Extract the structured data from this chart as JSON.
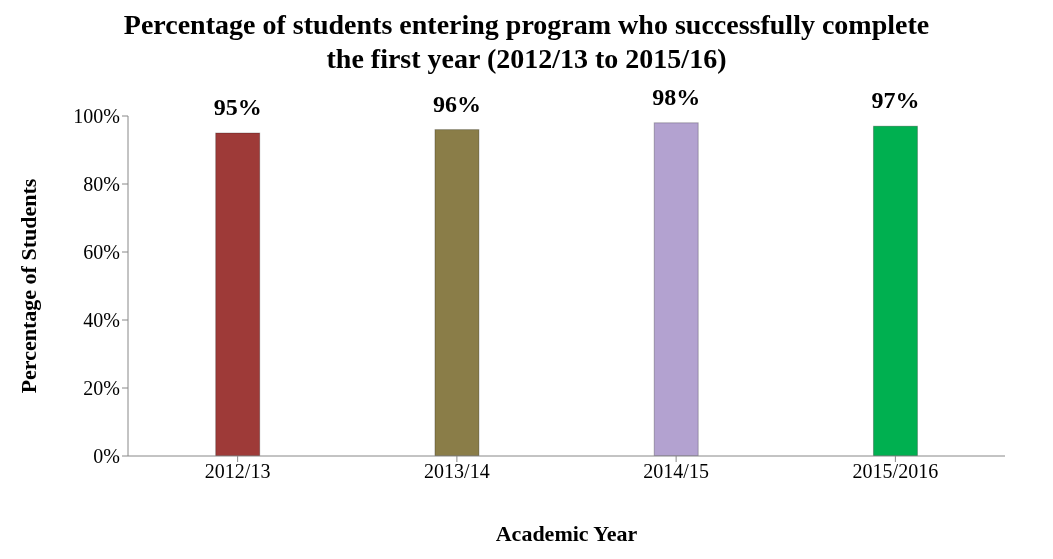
{
  "chart_data": {
    "type": "bar",
    "title": "Percentage of students entering program who successfully complete the  first year (2012/13 to 2015/16)",
    "xlabel": "Academic Year",
    "ylabel": "Percentage of Students",
    "categories": [
      "2012/13",
      "2013/14",
      "2014/15",
      "2015/2016"
    ],
    "values": [
      95,
      96,
      98,
      97
    ],
    "colors": [
      "#9e3a38",
      "#8a7d48",
      "#b3a2d0",
      "#00b050"
    ],
    "value_labels": [
      "95%",
      "96%",
      "98%",
      "97%"
    ],
    "ylim": [
      0,
      100
    ],
    "yticks": [
      {
        "value": 0,
        "label": "0%"
      },
      {
        "value": 20,
        "label": "20%"
      },
      {
        "value": 40,
        "label": "40%"
      },
      {
        "value": 60,
        "label": "60%"
      },
      {
        "value": 80,
        "label": "80%"
      },
      {
        "value": 100,
        "label": "100%"
      }
    ],
    "grid": false
  }
}
